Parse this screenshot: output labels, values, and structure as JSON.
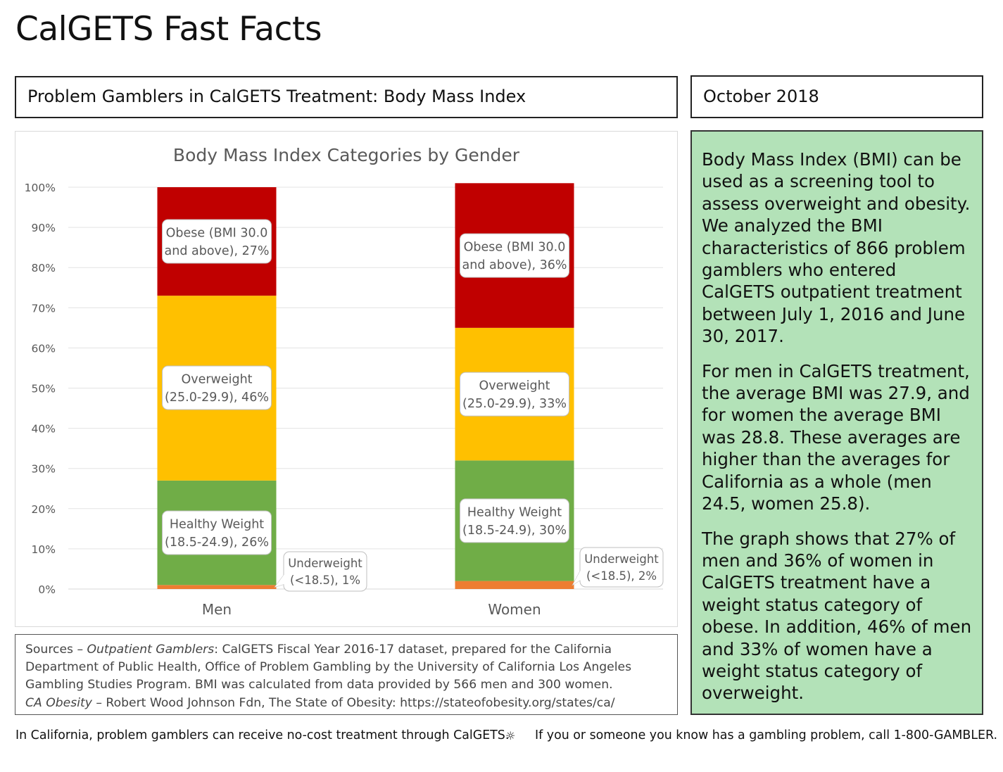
{
  "page": {
    "title": "CalGETS Fast Facts",
    "subtitle": "Problem Gamblers in CalGETS Treatment: Body Mass Index",
    "date": "October 2018"
  },
  "panel": {
    "paragraphs": [
      "Body Mass Index (BMI) can be used as a screening tool to assess overweight and obesity. We analyzed the BMI characteristics of 866 problem gamblers who entered CalGETS outpatient treatment between July 1, 2016 and June 30, 2017.",
      "For men in CalGETS treatment, the average BMI was 27.9, and for women the average BMI was 28.8. These averages are higher than the averages for California as a whole (men 24.5, women 25.8).",
      "The graph shows that 27% of men and 36% of women in CalGETS treatment have a weight status category of obese. In addition, 46% of men and 33% of women have a weight status category of overweight."
    ]
  },
  "sources": {
    "prefix": "Sources – ",
    "outpatient_label": "Outpatient Gamblers",
    "outpatient_text_1": ": CalGETS Fiscal Year 2016-17 dataset, prepared for the California",
    "outpatient_text_2": "Department of Public Health, Office of Problem Gambling by the University of California Los Angeles",
    "outpatient_text_3": "Gambling Studies Program. BMI was calculated from data provided by 566 men and 300 women.",
    "obesity_label": "CA Obesity",
    "obesity_text": " – Robert Wood Johnson Fdn, The State of Obesity: https://stateofobesity.org/states/ca/"
  },
  "footer": {
    "left": "In California, problem gamblers can receive no-cost treatment through CalGETS.",
    "separator": "☼",
    "right": "If you or someone you know has a gambling problem, call 1-800-GAMBLER."
  },
  "chart_data": {
    "type": "bar",
    "stacked": true,
    "title": "Body Mass Index Categories by Gender",
    "categories": [
      "Men",
      "Women"
    ],
    "y_ticks": [
      "0%",
      "10%",
      "20%",
      "30%",
      "40%",
      "50%",
      "60%",
      "70%",
      "80%",
      "90%",
      "100%"
    ],
    "ylim": [
      0,
      100
    ],
    "grid": true,
    "series": [
      {
        "key": "underweight",
        "color": "#ed7d31",
        "values": [
          1,
          2
        ],
        "labels": [
          [
            "Underweight",
            "(<18.5), 1%"
          ],
          [
            "Underweight",
            "(<18.5), 2%"
          ]
        ]
      },
      {
        "key": "healthy",
        "color": "#70ad47",
        "values": [
          26,
          30
        ],
        "labels": [
          [
            "Healthy Weight",
            "(18.5-24.9), 26%"
          ],
          [
            "Healthy Weight",
            "(18.5-24.9), 30%"
          ]
        ]
      },
      {
        "key": "overweight",
        "color": "#ffc000",
        "values": [
          46,
          33
        ],
        "labels": [
          [
            "Overweight",
            "(25.0-29.9), 46%"
          ],
          [
            "Overweight",
            "(25.0-29.9), 33%"
          ]
        ]
      },
      {
        "key": "obese",
        "color": "#c00000",
        "values": [
          27,
          36
        ],
        "labels": [
          [
            "Obese (BMI 30.0",
            "and above), 27%"
          ],
          [
            "Obese (BMI 30.0",
            "and above), 36%"
          ]
        ]
      }
    ]
  }
}
